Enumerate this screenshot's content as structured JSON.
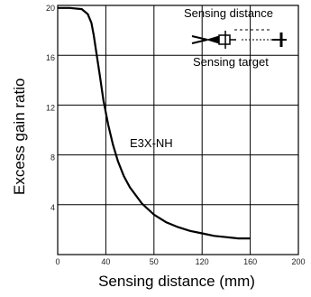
{
  "chart_data": {
    "type": "line",
    "title": "",
    "xlabel": "Sensing distance (mm)",
    "ylabel": "Excess gain ratio",
    "xlim": [
      0,
      200
    ],
    "ylim": [
      0,
      20
    ],
    "x_ticks": [
      "0",
      "40",
      "50",
      "120",
      "160",
      "200"
    ],
    "y_ticks": [
      "20",
      "16",
      "12",
      "8",
      "4"
    ],
    "grid": true,
    "series": [
      {
        "name": "E3X-NH",
        "x": [
          0,
          10,
          20,
          25,
          28,
          30,
          32,
          35,
          38,
          42,
          46,
          50,
          55,
          60,
          70,
          80,
          90,
          100,
          110,
          120,
          130,
          140,
          150,
          160
        ],
        "y": [
          19.8,
          19.8,
          19.7,
          19.3,
          18.6,
          17.6,
          16.3,
          14.4,
          12.4,
          10.4,
          8.8,
          7.5,
          6.3,
          5.4,
          4.1,
          3.2,
          2.6,
          2.2,
          1.9,
          1.7,
          1.5,
          1.4,
          1.3,
          1.3
        ]
      }
    ],
    "annotations": [
      "E3X-NH",
      "Sensing distance",
      "Sensing target"
    ]
  }
}
